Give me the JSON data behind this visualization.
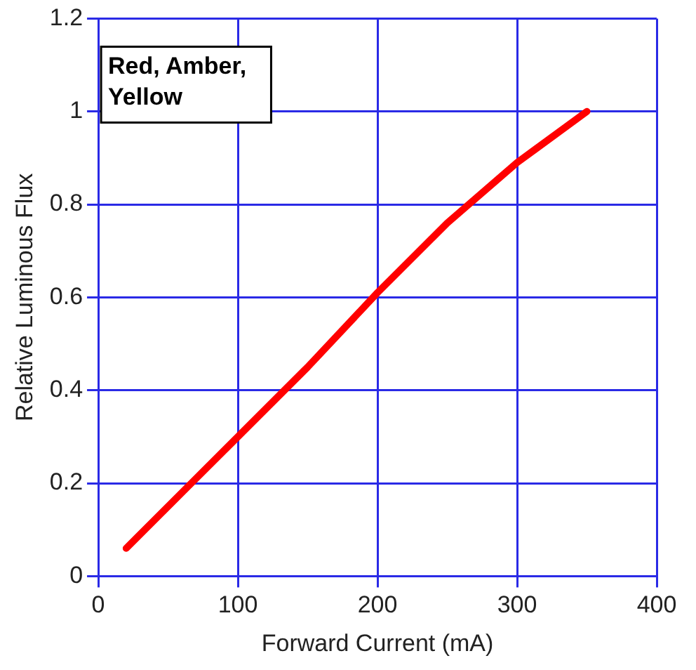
{
  "chart_data": {
    "type": "line",
    "xlabel": "Forward Current (mA)",
    "ylabel": "Relative Luminous Flux",
    "annotations": [
      "Red, Amber, Yellow"
    ],
    "x": [
      20,
      60,
      100,
      150,
      200,
      250,
      300,
      350
    ],
    "series": [
      {
        "color": "#ff0000",
        "values": [
          0.06,
          0.18,
          0.3,
          0.45,
          0.61,
          0.76,
          0.89,
          1.0
        ]
      }
    ],
    "xlim": [
      0,
      400
    ],
    "xticks": [
      0,
      100,
      200,
      300,
      400
    ],
    "ylim": [
      0,
      1.2
    ],
    "yticks": [
      0,
      0.2,
      0.4,
      0.6,
      0.8,
      1,
      1.2
    ],
    "grid": true,
    "legend": false,
    "marker": "none",
    "line_style": "solid"
  }
}
